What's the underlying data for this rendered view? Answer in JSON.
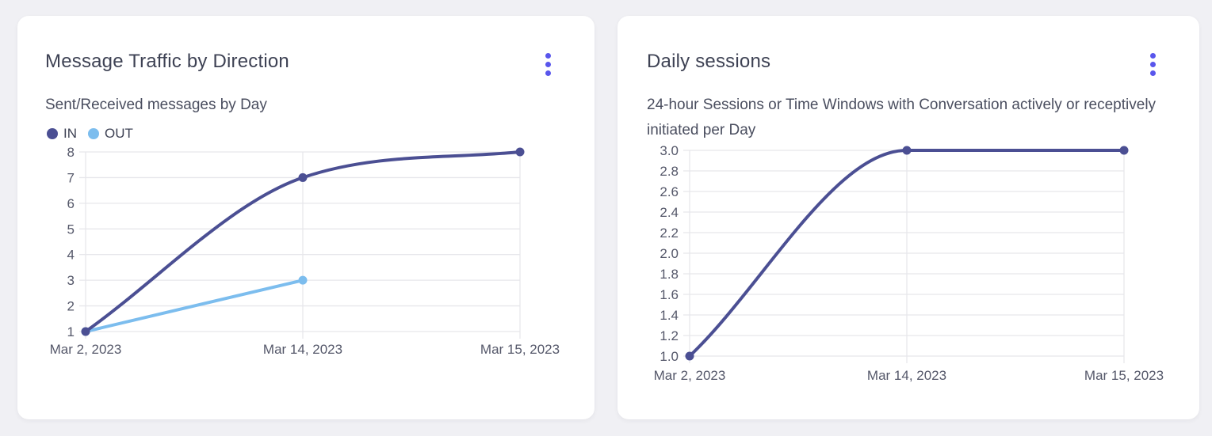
{
  "page": {
    "background": "#F0F0F4"
  },
  "colors": {
    "accent": "#5956EC",
    "series_in": "#4B4F93",
    "series_out": "#7CBDEE",
    "grid": "#E7E7EB",
    "title_text": "#3E4254",
    "subtitle_text": "#4A4E5F",
    "tick_text": "#55586A",
    "card_bg": "#FFFFFF"
  },
  "cards": [
    {
      "title": "Message Traffic by Direction",
      "subtitle": "Sent/Received messages by Day",
      "menu_icon": "kebab-vertical-icon"
    },
    {
      "title": "Daily sessions",
      "subtitle": "24-hour Sessions or Time Windows with Conversation actively or receptively initiated per Day",
      "menu_icon": "kebab-vertical-icon"
    }
  ],
  "chart_data": [
    {
      "type": "line",
      "title": "Message Traffic by Direction",
      "subtitle": "Sent/Received messages by Day",
      "categories": [
        "Mar 2, 2023",
        "Mar 14, 2023",
        "Mar 15, 2023"
      ],
      "series": [
        {
          "name": "IN",
          "color": "#4B4F93",
          "values": [
            1,
            7,
            8
          ]
        },
        {
          "name": "OUT",
          "color": "#7CBDEE",
          "values": [
            1,
            3,
            null
          ]
        }
      ],
      "xlabel": "",
      "ylabel": "",
      "ylim": [
        1,
        8
      ],
      "ytick_step": 1,
      "y_decimals": 0,
      "grid": true,
      "curve": "monotone",
      "legend_position": "top-left"
    },
    {
      "type": "line",
      "title": "Daily sessions",
      "subtitle": "24-hour Sessions or Time Windows with Conversation actively or receptively initiated per Day",
      "categories": [
        "Mar 2, 2023",
        "Mar 14, 2023",
        "Mar 15, 2023"
      ],
      "series": [
        {
          "name": "Daily sessions",
          "color": "#4B4F93",
          "values": [
            1,
            3,
            3
          ]
        }
      ],
      "xlabel": "",
      "ylabel": "",
      "ylim": [
        1,
        3
      ],
      "ytick_step": 0.2,
      "y_decimals": 1,
      "grid": true,
      "curve": "monotone",
      "legend_position": "none"
    }
  ]
}
